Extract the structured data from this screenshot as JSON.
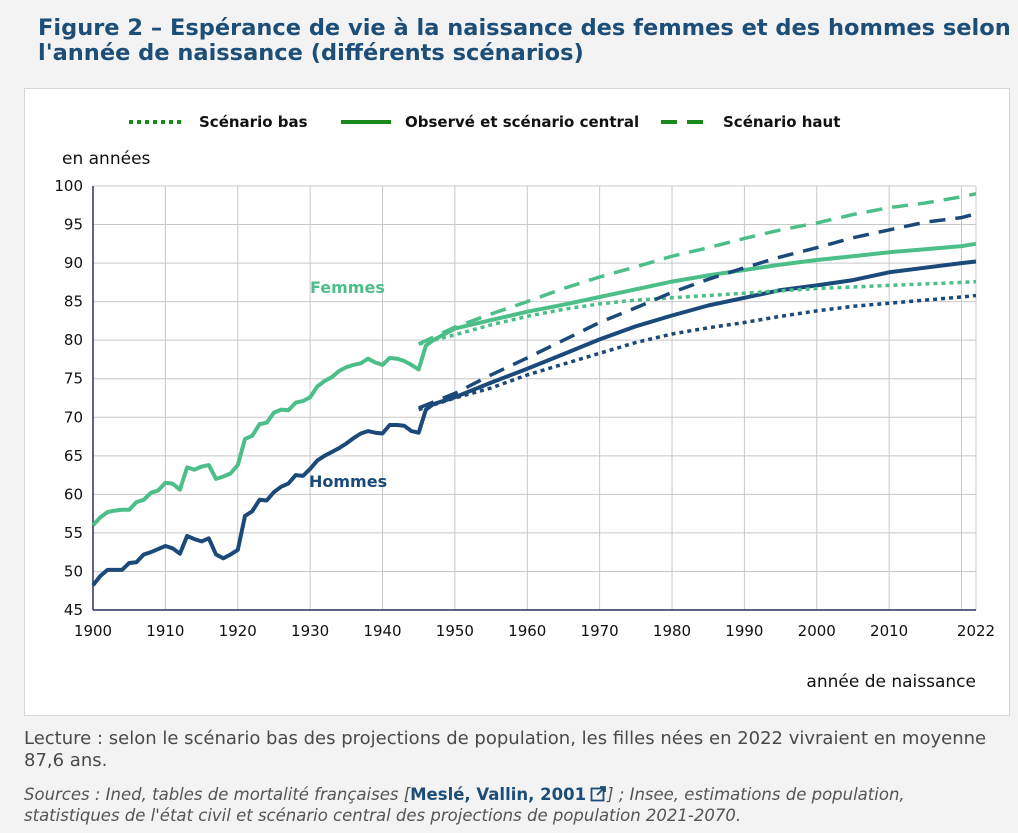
{
  "title": "Figure 2 – Espérance de vie à la naissance des femmes et des hommes selon l'année de naissance (différents scénarios)",
  "lecture": "Lecture : selon le scénario bas des projections de population, les filles nées en 2022 vivraient en moyenne 87,6 ans.",
  "sources": {
    "prefix": "Sources : Ined, tables de mortalité françaises [",
    "ref_label": "Meslé, Vallin, 2001",
    "suffix": "] ; Insee, estimations de population, statistiques de l'état civil et scénario central des projections de population 2021-2070.",
    "ref_icon": "external-link-icon"
  },
  "colors": {
    "femmes": "#4cbf88",
    "hommes": "#1b4a7a",
    "legend": "#1a8b1a",
    "title": "#1d4e78",
    "grid": "#c8c8c8"
  },
  "chart_data": {
    "type": "line",
    "ylabel": "en années",
    "xlabel": "année de naissance",
    "xlim": [
      1900,
      2022
    ],
    "ylim": [
      45,
      100
    ],
    "x_ticks": [
      1900,
      1910,
      1920,
      1930,
      1940,
      1950,
      1960,
      1970,
      1980,
      1990,
      2000,
      2010,
      2022
    ],
    "x_grid": [
      1900,
      1910,
      1920,
      1930,
      1940,
      1950,
      1960,
      1970,
      1980,
      1990,
      2000,
      2010,
      2020
    ],
    "y_ticks": [
      45,
      50,
      55,
      60,
      65,
      70,
      75,
      80,
      85,
      90,
      95,
      100
    ],
    "grid": true,
    "legend": [
      {
        "label": "Scénario bas",
        "style": "dotted"
      },
      {
        "label": "Observé et scénario central",
        "style": "solid"
      },
      {
        "label": "Scénario haut",
        "style": "dashed"
      }
    ],
    "series_labels": {
      "femmes": "Femmes",
      "hommes": "Hommes"
    },
    "series": [
      {
        "name": "Femmes – observé et scénario central",
        "group": "femmes",
        "style": "solid",
        "x": [
          1900,
          1901,
          1902,
          1903,
          1904,
          1905,
          1906,
          1907,
          1908,
          1909,
          1910,
          1911,
          1912,
          1913,
          1914,
          1915,
          1916,
          1917,
          1918,
          1919,
          1920,
          1921,
          1922,
          1923,
          1924,
          1925,
          1926,
          1927,
          1928,
          1929,
          1930,
          1931,
          1932,
          1933,
          1934,
          1935,
          1936,
          1937,
          1938,
          1939,
          1940,
          1941,
          1942,
          1943,
          1944,
          1945,
          1946,
          1947,
          1948,
          1950,
          1955,
          1960,
          1965,
          1970,
          1975,
          1980,
          1985,
          1990,
          1995,
          2000,
          2005,
          2010,
          2015,
          2020,
          2022
        ],
        "y": [
          56,
          57,
          57.7,
          57.9,
          58,
          58,
          59,
          59.3,
          60.2,
          60.5,
          61.5,
          61.4,
          60.6,
          63.5,
          63.2,
          63.6,
          63.8,
          62,
          62.3,
          62.7,
          63.8,
          67.2,
          67.6,
          69.1,
          69.3,
          70.6,
          71,
          70.9,
          71.9,
          72.1,
          72.6,
          74,
          74.7,
          75.2,
          76,
          76.5,
          76.8,
          77,
          77.6,
          77.1,
          76.8,
          77.7,
          77.6,
          77.3,
          76.8,
          76.2,
          79.3,
          80,
          80.5,
          81.5,
          82.6,
          83.7,
          84.6,
          85.6,
          86.6,
          87.6,
          88.4,
          89.1,
          89.8,
          90.4,
          90.9,
          91.4,
          91.8,
          92.2,
          92.5
        ]
      },
      {
        "name": "Hommes – observé et scénario central",
        "group": "hommes",
        "style": "solid",
        "x": [
          1900,
          1901,
          1902,
          1903,
          1904,
          1905,
          1906,
          1907,
          1908,
          1909,
          1910,
          1911,
          1912,
          1913,
          1914,
          1915,
          1916,
          1917,
          1918,
          1919,
          1920,
          1921,
          1922,
          1923,
          1924,
          1925,
          1926,
          1927,
          1928,
          1929,
          1930,
          1931,
          1932,
          1933,
          1934,
          1935,
          1936,
          1937,
          1938,
          1939,
          1940,
          1941,
          1942,
          1943,
          1944,
          1945,
          1946,
          1947,
          1948,
          1950,
          1955,
          1960,
          1965,
          1970,
          1975,
          1980,
          1985,
          1990,
          1995,
          2000,
          2005,
          2010,
          2015,
          2020,
          2022
        ],
        "y": [
          48.2,
          49.4,
          50.2,
          50.2,
          50.2,
          51.1,
          51.2,
          52.2,
          52.5,
          52.9,
          53.3,
          53,
          52.3,
          54.6,
          54.2,
          53.9,
          54.3,
          52.2,
          51.7,
          52.2,
          52.8,
          57.2,
          57.8,
          59.3,
          59.2,
          60.3,
          61,
          61.4,
          62.5,
          62.4,
          63.3,
          64.4,
          65,
          65.5,
          66,
          66.6,
          67.3,
          67.9,
          68.2,
          68,
          67.9,
          69,
          69,
          68.9,
          68.2,
          68,
          71,
          71.7,
          72,
          72.6,
          74.5,
          76.3,
          78.2,
          80.1,
          81.8,
          83.2,
          84.5,
          85.5,
          86.5,
          87.1,
          87.8,
          88.8,
          89.4,
          90,
          90.2
        ]
      },
      {
        "name": "Femmes – scénario bas",
        "group": "femmes",
        "style": "dotted",
        "x": [
          1945,
          1950,
          1955,
          1960,
          1965,
          1970,
          1975,
          1980,
          1985,
          1990,
          1995,
          2000,
          2005,
          2010,
          2015,
          2020,
          2022
        ],
        "y": [
          79.5,
          80.7,
          82,
          83.1,
          84,
          84.7,
          85.2,
          85.5,
          85.8,
          86.1,
          86.4,
          86.7,
          86.9,
          87.1,
          87.3,
          87.5,
          87.6
        ]
      },
      {
        "name": "Femmes – scénario haut",
        "group": "femmes",
        "style": "dashed",
        "x": [
          1945,
          1950,
          1955,
          1960,
          1965,
          1970,
          1975,
          1980,
          1985,
          1990,
          1995,
          2000,
          2005,
          2010,
          2015,
          2020,
          2022
        ],
        "y": [
          79.5,
          81.7,
          83.4,
          85,
          86.7,
          88.2,
          89.5,
          90.9,
          92,
          93.2,
          94.3,
          95.2,
          96.3,
          97.2,
          97.8,
          98.6,
          99
        ]
      },
      {
        "name": "Hommes – scénario bas",
        "group": "hommes",
        "style": "dotted",
        "x": [
          1945,
          1950,
          1955,
          1960,
          1965,
          1970,
          1975,
          1980,
          1985,
          1990,
          1995,
          2000,
          2005,
          2010,
          2015,
          2020,
          2022
        ],
        "y": [
          71,
          72.5,
          73.8,
          75.5,
          76.9,
          78.3,
          79.7,
          80.8,
          81.6,
          82.3,
          83.1,
          83.8,
          84.4,
          84.8,
          85.2,
          85.6,
          85.8
        ]
      },
      {
        "name": "Hommes – scénario haut",
        "group": "hommes",
        "style": "dashed",
        "x": [
          1945,
          1950,
          1955,
          1960,
          1965,
          1970,
          1975,
          1980,
          1985,
          1990,
          1995,
          2000,
          2005,
          2010,
          2015,
          2020,
          2022
        ],
        "y": [
          71.2,
          73.1,
          75.5,
          77.7,
          80,
          82.3,
          84.2,
          86.2,
          87.9,
          89.4,
          90.8,
          92,
          93.3,
          94.3,
          95.3,
          95.9,
          96.4
        ]
      }
    ]
  }
}
